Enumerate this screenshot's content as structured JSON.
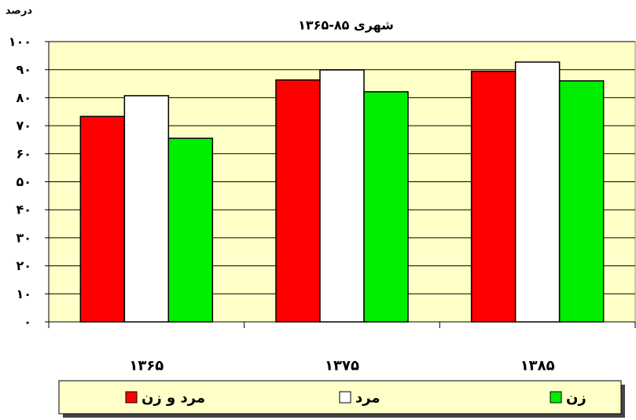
{
  "chart_data": {
    "type": "bar",
    "title": "شهری ۸۵-۱۳۶۵",
    "y_label": "درصد",
    "categories": [
      "۱۳۶۵",
      "۱۳۷۵",
      "۱۳۸۵"
    ],
    "series": [
      {
        "name": "مرد و زن",
        "color": "#ff0000",
        "values": [
          73.3,
          86.3,
          89.4
        ]
      },
      {
        "name": "مرد",
        "color": "#ffffff",
        "values": [
          80.7,
          89.9,
          92.7
        ]
      },
      {
        "name": "زن",
        "color": "#00ee00",
        "values": [
          65.5,
          82.1,
          86.0
        ]
      }
    ],
    "ylim": [
      0,
      100
    ],
    "yticks": [
      {
        "value": 0,
        "label": "۰"
      },
      {
        "value": 10,
        "label": "۱۰"
      },
      {
        "value": 20,
        "label": "۲۰"
      },
      {
        "value": 30,
        "label": "۳۰"
      },
      {
        "value": 40,
        "label": "۴۰"
      },
      {
        "value": 50,
        "label": "۵۰"
      },
      {
        "value": 60,
        "label": "۶۰"
      },
      {
        "value": 70,
        "label": "۷۰"
      },
      {
        "value": 80,
        "label": "۸۰"
      },
      {
        "value": 90,
        "label": "۹۰"
      },
      {
        "value": 100,
        "label": "۱۰۰"
      }
    ],
    "grid": true
  }
}
